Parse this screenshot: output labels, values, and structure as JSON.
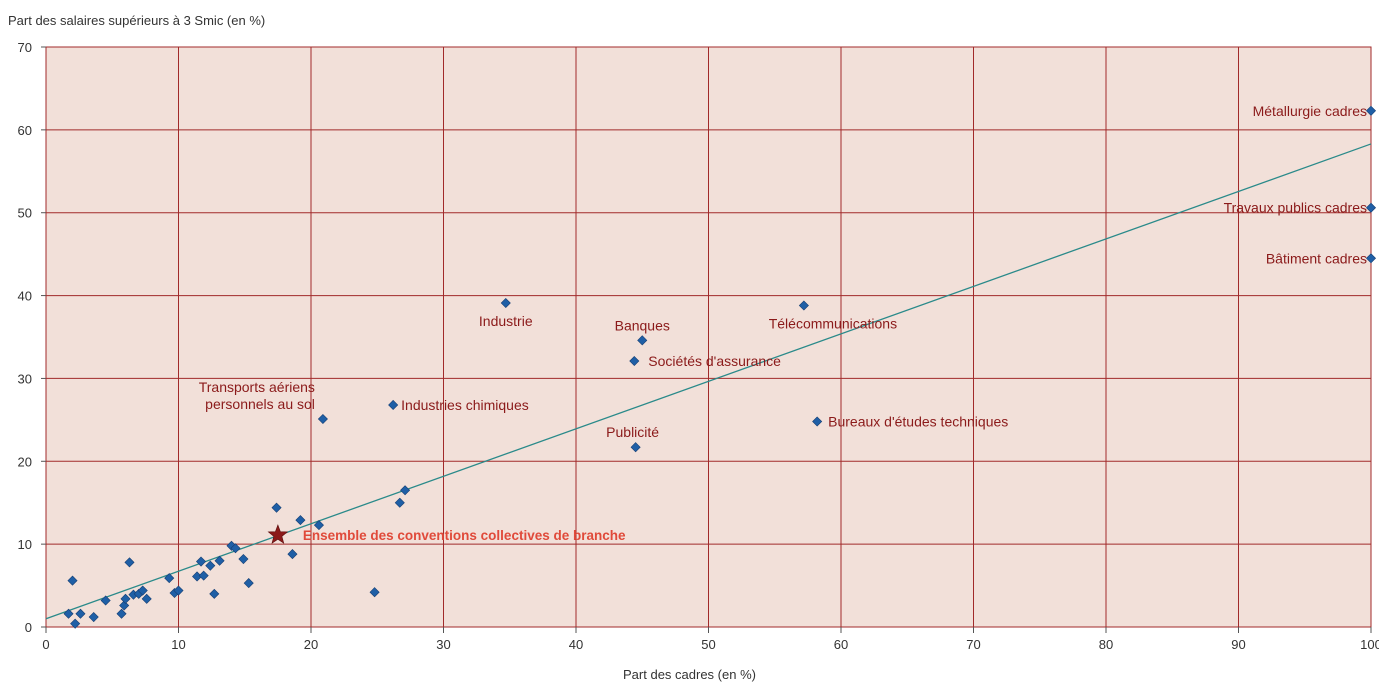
{
  "chart_data": {
    "type": "scatter",
    "xlabel": "Part des cadres (en %)",
    "ylabel": "Part des salaires supérieurs à 3 Smic (en %)",
    "xlim": [
      0,
      100
    ],
    "ylim": [
      0,
      70
    ],
    "x_ticks": [
      0,
      10,
      20,
      30,
      40,
      50,
      60,
      70,
      80,
      90,
      100
    ],
    "y_ticks": [
      0,
      10,
      20,
      30,
      40,
      50,
      60,
      70
    ],
    "grid": true,
    "colors": {
      "plot_background": "#f2e0d9",
      "grid": "#a12a2a",
      "points": "#1f5fa6",
      "trendline": "#2a8a8a",
      "labels": "#8b1a1a",
      "highlight": "#e04a3a",
      "star": "#8b1a1a"
    },
    "trendline": {
      "x": [
        0,
        100
      ],
      "y": [
        1,
        58.3
      ]
    },
    "labeled_points": [
      {
        "label": "Métallurgie cadres",
        "x": 100,
        "y": 62.3
      },
      {
        "label": "Travaux publics cadres",
        "x": 100,
        "y": 50.6
      },
      {
        "label": "Bâtiment cadres",
        "x": 100,
        "y": 44.5
      },
      {
        "label": "Industrie",
        "x": 34.7,
        "y": 39.1
      },
      {
        "label": "Télécommunications",
        "x": 57.2,
        "y": 38.8
      },
      {
        "label": "Banques",
        "x": 45.0,
        "y": 34.6
      },
      {
        "label": "Sociétés d'assurance",
        "x": 44.4,
        "y": 32.1
      },
      {
        "label": "Industries chimiques",
        "x": 26.2,
        "y": 26.8
      },
      {
        "label": "Transports aériens personnels au sol",
        "x": 20.9,
        "y": 25.1
      },
      {
        "label": "Bureaux d'études techniques",
        "x": 58.2,
        "y": 24.8
      },
      {
        "label": "Publicité",
        "x": 44.5,
        "y": 21.7
      }
    ],
    "highlight": {
      "label": "Ensemble des conventions collectives de branche",
      "x": 17.5,
      "y": 11.1
    },
    "points": [
      [
        1.7,
        1.6
      ],
      [
        2.0,
        5.6
      ],
      [
        2.2,
        0.4
      ],
      [
        2.6,
        1.6
      ],
      [
        3.6,
        1.2
      ],
      [
        4.5,
        3.2
      ],
      [
        5.7,
        1.6
      ],
      [
        5.9,
        2.6
      ],
      [
        6.0,
        3.4
      ],
      [
        6.3,
        7.8
      ],
      [
        6.6,
        3.9
      ],
      [
        7.0,
        4.0
      ],
      [
        7.3,
        4.4
      ],
      [
        7.6,
        3.4
      ],
      [
        9.3,
        5.9
      ],
      [
        9.7,
        4.1
      ],
      [
        10.0,
        4.4
      ],
      [
        11.4,
        6.1
      ],
      [
        11.7,
        7.9
      ],
      [
        11.9,
        6.2
      ],
      [
        12.4,
        7.4
      ],
      [
        12.7,
        4.0
      ],
      [
        13.1,
        8.0
      ],
      [
        14.0,
        9.8
      ],
      [
        14.3,
        9.5
      ],
      [
        14.9,
        8.2
      ],
      [
        15.3,
        5.3
      ],
      [
        17.4,
        14.4
      ],
      [
        18.6,
        8.8
      ],
      [
        19.2,
        12.9
      ],
      [
        20.6,
        12.3
      ],
      [
        24.8,
        4.2
      ],
      [
        26.7,
        15.0
      ],
      [
        27.1,
        16.5
      ]
    ]
  }
}
